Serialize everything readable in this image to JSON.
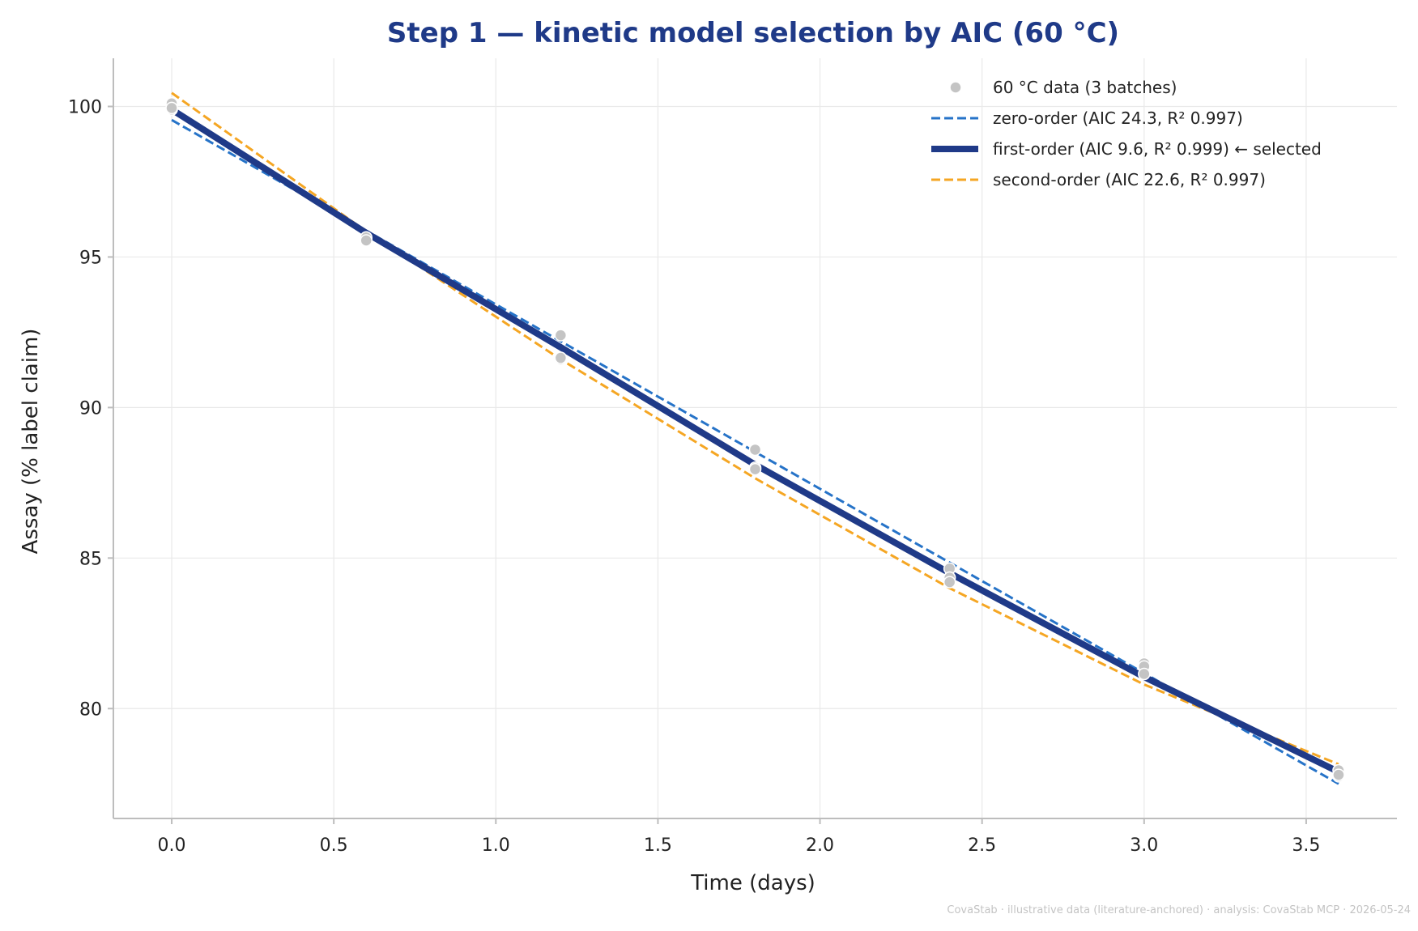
{
  "chart_data": {
    "type": "scatter",
    "title": "Step 1 — kinetic model selection by AIC (60 °C)",
    "xlabel": "Time (days)",
    "ylabel": "Assay (% label claim)",
    "xlim": [
      -0.18,
      3.78
    ],
    "ylim": [
      76.35,
      101.6
    ],
    "xticks": [
      0.0,
      0.5,
      1.0,
      1.5,
      2.0,
      2.5,
      3.0,
      3.5
    ],
    "xtick_labels": [
      "0.0",
      "0.5",
      "1.0",
      "1.5",
      "2.0",
      "2.5",
      "3.0",
      "3.5"
    ],
    "yticks": [
      80,
      85,
      90,
      95,
      100
    ],
    "ytick_labels": [
      "80",
      "85",
      "90",
      "95",
      "100"
    ],
    "grid": true,
    "legend_position": "top-right",
    "points": {
      "name": "60 °C data (3 batches)",
      "color": "#c4c4c4",
      "x": [
        0,
        0,
        0,
        0.6,
        0.6,
        0.6,
        1.2,
        1.2,
        1.2,
        1.8,
        1.8,
        1.8,
        2.4,
        2.4,
        2.4,
        3.0,
        3.0,
        3.0,
        3.6,
        3.6,
        3.6
      ],
      "y": [
        100.1,
        99.9,
        99.95,
        95.6,
        95.65,
        95.55,
        92.4,
        91.6,
        91.65,
        88.6,
        88.0,
        87.95,
        84.65,
        84.35,
        84.2,
        81.5,
        81.4,
        81.15,
        77.95,
        77.75,
        77.8
      ]
    },
    "series": [
      {
        "name": "zero-order  (AIC 24.3, R² 0.997)",
        "model": "zero-order",
        "color": "#2673c8",
        "style": "dashed",
        "x": [
          0,
          3.6
        ],
        "y": [
          99.55,
          77.5
        ]
      },
      {
        "name": "second-order  (AIC 22.6, R² 0.997)",
        "model": "second-order",
        "color": "#f5a623",
        "style": "dashed",
        "x": [
          0,
          0.6,
          1.2,
          1.8,
          2.4,
          3.0,
          3.6
        ],
        "y": [
          100.45,
          95.85,
          91.6,
          87.65,
          84.0,
          80.8,
          78.15
        ]
      },
      {
        "name": "first-order  (AIC 9.6, R² 0.999)  ← selected",
        "model": "first-order",
        "color": "#1f3a88",
        "style": "solid",
        "x": [
          0,
          0.6,
          1.2,
          1.8,
          2.4,
          3.0,
          3.6
        ],
        "y": [
          99.9,
          95.8,
          92.0,
          88.1,
          84.5,
          81.05,
          77.9
        ]
      }
    ],
    "legend_order": [
      "points",
      "zero-order",
      "first-order",
      "second-order"
    ]
  },
  "footer": "CovaStab · illustrative data (literature-anchored) · analysis: CovaStab MCP · 2026-05-24"
}
